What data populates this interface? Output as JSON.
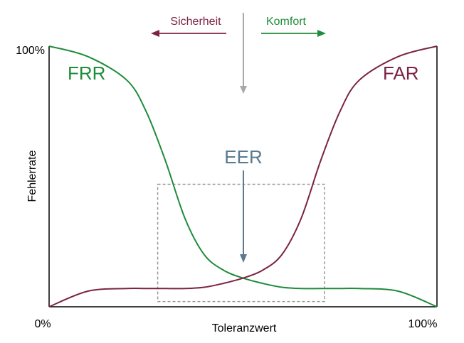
{
  "chart_data": {
    "type": "line",
    "xlabel": "Toleranzwert",
    "ylabel": "Fehlerrate",
    "x_tick_labels": [
      "0%",
      "100%"
    ],
    "y_tick_labels": [
      "100%"
    ],
    "xlim": [
      0,
      100
    ],
    "ylim": [
      0,
      100
    ],
    "grid": false,
    "series": [
      {
        "name": "FRR",
        "color": "#1e8c3a",
        "x": [
          0,
          10,
          20,
          25,
          30,
          35,
          40,
          45,
          50,
          55,
          60,
          65,
          70,
          75,
          80,
          90,
          100
        ],
        "y": [
          100,
          96,
          87,
          75,
          56,
          34,
          20,
          14,
          11,
          9,
          7.5,
          7,
          7,
          7,
          7,
          6,
          0
        ]
      },
      {
        "name": "FAR",
        "color": "#7b2344",
        "x": [
          0,
          10,
          20,
          25,
          30,
          35,
          40,
          45,
          50,
          55,
          60,
          65,
          70,
          75,
          80,
          90,
          100
        ],
        "y": [
          0,
          6,
          7,
          7,
          7,
          7,
          7.5,
          9,
          11,
          14,
          20,
          34,
          56,
          75,
          87,
          96,
          100
        ]
      }
    ],
    "annotations": {
      "eer": {
        "label": "EER",
        "x": 50,
        "y": 11,
        "color": "#5a7a90"
      },
      "security": {
        "label": "Sicherheit",
        "color": "#7b2344"
      },
      "comfort": {
        "label": "Komfort",
        "color": "#1e8c3a"
      },
      "zoom_box": {
        "x_range": [
          28,
          71
        ],
        "y_range": [
          2,
          47
        ]
      }
    }
  }
}
